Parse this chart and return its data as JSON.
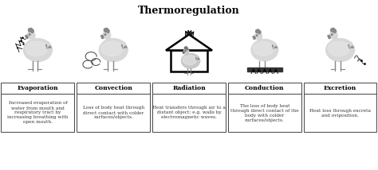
{
  "title": "Thermoregulation",
  "title_fontsize": 9,
  "title_fontweight": "bold",
  "background_color": "#ffffff",
  "panels": [
    {
      "label": "Evaporation",
      "description": "Increased evaporation of\nwater from mouth and\nrespiratory tract by\nincreasing breathing with\nopen mouth."
    },
    {
      "label": "Convection",
      "description": "Loss of body heat through\ndirect contact with colder\nsurfaces/objects."
    },
    {
      "label": "Radiation",
      "description": "Heat transfers through air to a\ndistant object; e.g. walls by\nelectromagnetic waves."
    },
    {
      "label": "Conduction",
      "description": "The loss of body heat\nthrough direct contact of the\nbody with colder\nsurfaces/objects."
    },
    {
      "label": "Excretion",
      "description": "Heat loss through excreta\nand oviposition."
    }
  ],
  "label_fontsize": 5.5,
  "label_fontweight": "bold",
  "desc_fontsize": 4.2,
  "border_color": "#444444",
  "text_color": "#333333",
  "chicken_body_color": "#d8d8d8",
  "chicken_dark_color": "#888888"
}
